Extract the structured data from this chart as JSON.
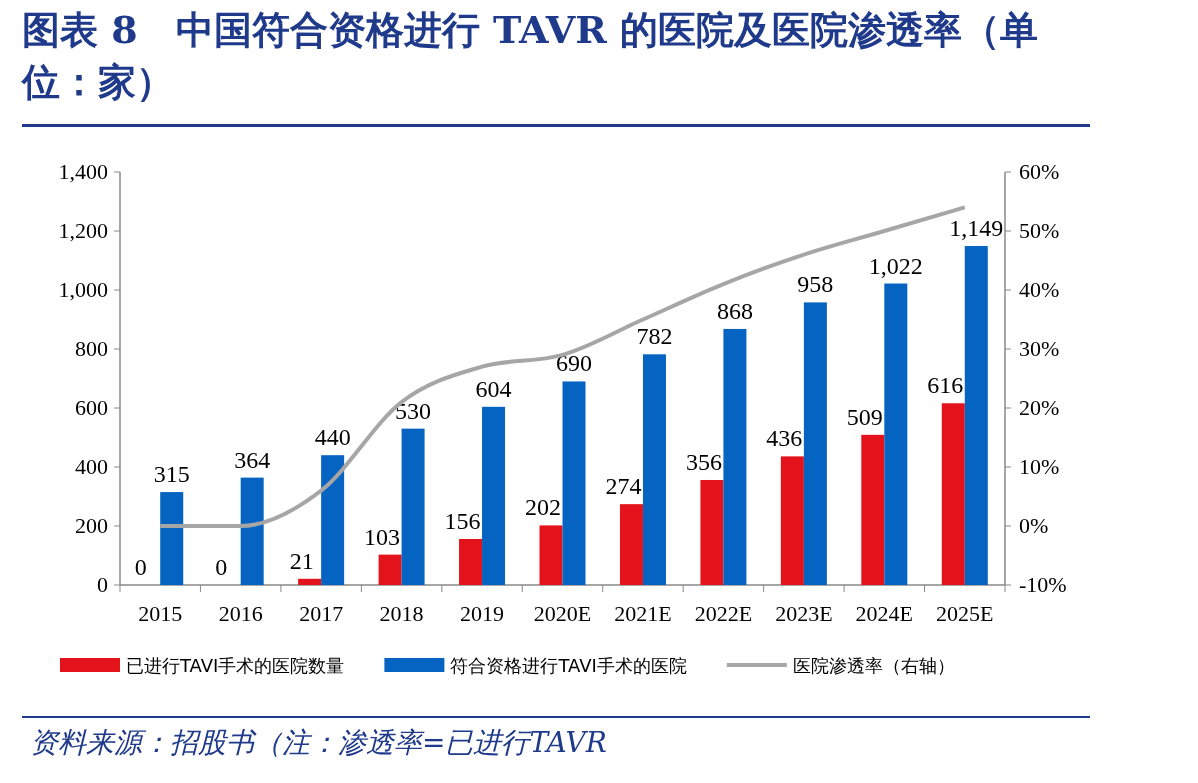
{
  "chart_data": {
    "type": "bar",
    "title": "图表 8　中国符合资格进行 TAVR 的医院及医院渗透率（单位：家）",
    "categories": [
      "2015",
      "2016",
      "2017",
      "2018",
      "2019",
      "2020E",
      "2021E",
      "2022E",
      "2023E",
      "2024E",
      "2025E"
    ],
    "series": [
      {
        "name": "已进行TAVI手术的医院数量",
        "color": "#e3121b",
        "values": [
          0,
          0,
          21,
          103,
          156,
          202,
          274,
          356,
          436,
          509,
          616
        ],
        "value_labels": [
          "0",
          "0",
          "21",
          "103",
          "156",
          "202",
          "274",
          "356",
          "436",
          "509",
          "616"
        ]
      },
      {
        "name": "符合资格进行TAVI手术的医院",
        "color": "#0563c1",
        "values": [
          315,
          364,
          440,
          530,
          604,
          690,
          782,
          868,
          958,
          1022,
          1149
        ],
        "value_labels": [
          "315",
          "364",
          "440",
          "530",
          "604",
          "690",
          "782",
          "868",
          "958",
          "1,022",
          "1,149"
        ]
      },
      {
        "name": "医院渗透率（右轴）",
        "type": "line",
        "axis": "y2",
        "color": "#a6a6a6",
        "values": [
          0,
          0,
          6,
          21,
          27,
          29,
          35,
          41,
          46,
          50,
          54
        ]
      }
    ],
    "ylim": [
      0,
      1400
    ],
    "yticks": [
      0,
      200,
      400,
      600,
      800,
      {
        "value": 1000,
        "label": "1,000"
      },
      {
        "value": 1200,
        "label": "1,200"
      },
      {
        "value": 1400,
        "label": "1,400"
      }
    ],
    "y2lim": [
      -10,
      60
    ],
    "y2ticks": [
      {
        "value": -10,
        "label": "-10%"
      },
      {
        "value": 0,
        "label": "0%"
      },
      {
        "value": 10,
        "label": "10%"
      },
      {
        "value": 20,
        "label": "20%"
      },
      {
        "value": 30,
        "label": "30%"
      },
      {
        "value": 40,
        "label": "40%"
      },
      {
        "value": 50,
        "label": "50%"
      },
      {
        "value": 60,
        "label": "60%"
      }
    ],
    "grid": false,
    "legend": "bottom",
    "annotations": [
      "资料来源：招股书（注：渗透率=已进行TAVR"
    ]
  }
}
